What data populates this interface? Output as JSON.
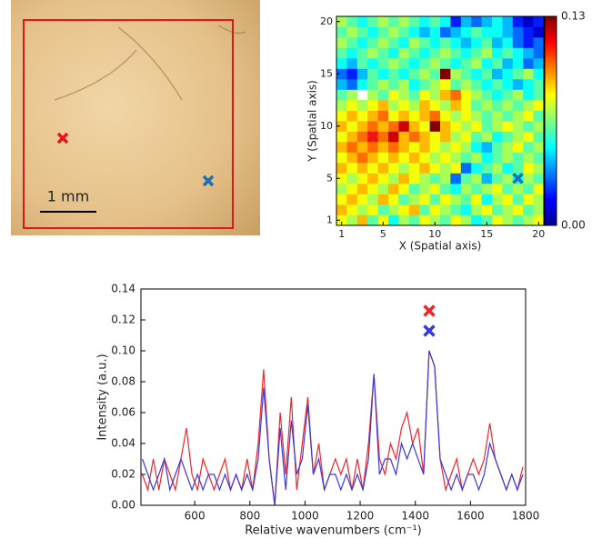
{
  "image": {
    "scale_bar": "1 mm"
  },
  "chart_data": [
    {
      "type": "heatmap",
      "xlabel": "X (Spatial axis)",
      "ylabel": "Y (Spatial axis)",
      "xlim": [
        0.5,
        20.5
      ],
      "ylim": [
        0.5,
        20.5
      ],
      "xticks": [
        1,
        5,
        10,
        15,
        20
      ],
      "yticks": [
        1,
        5,
        10,
        15,
        20
      ],
      "zlim": [
        0,
        0.13
      ],
      "zticks": [
        {
          "value": 0,
          "label": "0.00"
        },
        0.13
      ],
      "colormap": "jet",
      "markers": [
        {
          "x": 4,
          "y": 9,
          "color": "#e8141c"
        },
        {
          "x": 18,
          "y": 5,
          "color": "#1f6fb5"
        }
      ],
      "z": [
        [
          0.08,
          0.07,
          0.09,
          0.06,
          0.08,
          0.05,
          0.07,
          0.06,
          0.08,
          0.07,
          0.06,
          0.08,
          0.07,
          0.05,
          0.06,
          0.08,
          0.07,
          0.06,
          0.07,
          0.08
        ],
        [
          0.09,
          0.08,
          0.07,
          0.08,
          0.06,
          0.07,
          0.08,
          0.09,
          0.06,
          0.08,
          0.07,
          0.06,
          0.05,
          0.07,
          0.08,
          0.06,
          0.07,
          0.08,
          0.06,
          0.07
        ],
        [
          0.08,
          0.09,
          0.08,
          0.07,
          0.09,
          0.08,
          0.06,
          0.07,
          0.08,
          0.06,
          0.08,
          0.07,
          0.06,
          0.08,
          0.05,
          0.07,
          0.08,
          0.06,
          0.08,
          0.07
        ],
        [
          0.07,
          0.08,
          0.09,
          0.08,
          0.07,
          0.09,
          0.08,
          0.06,
          0.07,
          0.08,
          0.06,
          0.05,
          0.07,
          0.06,
          0.07,
          0.08,
          0.06,
          0.07,
          0.06,
          0.08
        ],
        [
          0.08,
          0.07,
          0.08,
          0.09,
          0.08,
          0.07,
          0.09,
          0.08,
          0.07,
          0.06,
          0.07,
          0.03,
          0.06,
          0.07,
          0.04,
          0.06,
          0.07,
          0.05,
          0.07,
          0.06
        ],
        [
          0.09,
          0.08,
          0.09,
          0.08,
          0.09,
          0.08,
          0.07,
          0.08,
          0.09,
          0.08,
          0.07,
          0.08,
          0.03,
          0.05,
          0.06,
          0.07,
          0.05,
          0.06,
          0.08,
          0.07
        ],
        [
          0.08,
          0.09,
          0.1,
          0.09,
          0.08,
          0.09,
          0.08,
          0.09,
          0.08,
          0.07,
          0.08,
          0.07,
          0.06,
          0.07,
          0.05,
          0.06,
          0.07,
          0.06,
          0.07,
          0.06
        ],
        [
          0.09,
          0.1,
          0.09,
          0.1,
          0.09,
          0.1,
          0.09,
          0.08,
          0.09,
          0.08,
          0.07,
          0.08,
          0.07,
          0.05,
          0.04,
          0.06,
          0.07,
          0.08,
          0.06,
          0.07
        ],
        [
          0.08,
          0.09,
          0.1,
          0.11,
          0.1,
          0.12,
          0.09,
          0.1,
          0.09,
          0.08,
          0.09,
          0.07,
          0.08,
          0.06,
          0.07,
          0.05,
          0.06,
          0.07,
          0.08,
          0.06
        ],
        [
          0.09,
          0.08,
          0.09,
          0.1,
          0.09,
          0.1,
          0.12,
          0.09,
          0.08,
          0.13,
          0.09,
          0.08,
          0.07,
          0.08,
          0.06,
          0.07,
          0.08,
          0.07,
          0.06,
          0.07
        ],
        [
          0.08,
          0.09,
          0.08,
          0.09,
          0.1,
          0.08,
          0.09,
          0.08,
          0.09,
          0.1,
          0.08,
          0.07,
          0.08,
          0.07,
          0.06,
          0.07,
          0.06,
          0.07,
          0.08,
          0.06
        ],
        [
          0.07,
          0.08,
          0.07,
          0.08,
          0.09,
          0.07,
          0.08,
          0.07,
          0.09,
          0.08,
          0.07,
          0.09,
          0.08,
          0.06,
          0.07,
          0.06,
          0.07,
          0.06,
          0.07,
          0.08
        ],
        [
          0.06,
          0.07,
          null,
          0.07,
          0.06,
          0.08,
          0.07,
          0.06,
          0.08,
          0.07,
          0.09,
          0.1,
          0.08,
          0.07,
          0.06,
          0.05,
          0.06,
          0.07,
          0.05,
          0.06
        ],
        [
          0.04,
          0.03,
          0.05,
          0.06,
          0.07,
          0.06,
          0.07,
          0.05,
          0.06,
          0.07,
          0.08,
          0.06,
          0.07,
          0.06,
          0.05,
          0.06,
          0.05,
          0.04,
          0.05,
          0.06
        ],
        [
          0.03,
          0.02,
          0.04,
          0.06,
          0.05,
          0.06,
          0.05,
          0.06,
          0.07,
          0.06,
          0.13,
          0.07,
          0.06,
          0.05,
          0.06,
          0.04,
          0.05,
          0.06,
          0.07,
          0.05
        ],
        [
          0.05,
          0.04,
          0.06,
          0.05,
          0.06,
          0.07,
          0.06,
          0.05,
          0.06,
          0.07,
          0.06,
          0.05,
          0.06,
          0.07,
          0.05,
          0.06,
          0.04,
          0.05,
          0.03,
          0.04
        ],
        [
          0.06,
          0.05,
          0.06,
          0.07,
          0.06,
          0.05,
          0.07,
          0.06,
          0.05,
          0.06,
          0.07,
          0.06,
          0.05,
          0.06,
          0.07,
          0.05,
          0.06,
          0.05,
          0.04,
          0.03
        ],
        [
          0.07,
          0.06,
          0.05,
          0.06,
          0.07,
          0.06,
          0.05,
          0.07,
          0.06,
          0.05,
          0.06,
          0.05,
          0.04,
          0.05,
          0.06,
          0.04,
          0.05,
          0.03,
          0.02,
          0.03
        ],
        [
          0.06,
          0.07,
          0.06,
          0.05,
          0.06,
          0.07,
          0.06,
          0.05,
          0.04,
          0.05,
          0.03,
          0.04,
          0.05,
          0.06,
          0.05,
          0.05,
          0.04,
          0.03,
          0.02,
          0.01
        ],
        [
          0.07,
          0.06,
          0.05,
          0.06,
          0.07,
          0.06,
          0.07,
          0.06,
          0.05,
          0.06,
          0.05,
          0.02,
          0.04,
          0.03,
          0.04,
          0.05,
          0.04,
          0.02,
          0.01,
          0.02
        ]
      ]
    },
    {
      "type": "line",
      "xlabel": "Relative wavenumbers (cm⁻¹)",
      "ylabel": "Intensity (a.u.)",
      "xlim": [
        405,
        1800
      ],
      "ylim": [
        0,
        0.14
      ],
      "xticks": [
        600,
        800,
        1000,
        1200,
        1400,
        1600,
        1800
      ],
      "yticks": [
        {
          "value": 0,
          "label": "0.00"
        },
        0.02,
        0.04,
        0.06,
        0.08,
        {
          "value": 0.1,
          "label": "0.10"
        },
        0.12,
        0.14
      ],
      "x": [
        410,
        430,
        450,
        470,
        490,
        510,
        530,
        550,
        570,
        590,
        610,
        630,
        650,
        670,
        690,
        710,
        730,
        750,
        770,
        790,
        810,
        830,
        850,
        870,
        890,
        910,
        930,
        950,
        970,
        990,
        1010,
        1030,
        1050,
        1070,
        1090,
        1110,
        1130,
        1150,
        1170,
        1190,
        1210,
        1230,
        1250,
        1270,
        1290,
        1310,
        1330,
        1350,
        1370,
        1390,
        1410,
        1430,
        1450,
        1470,
        1490,
        1510,
        1530,
        1550,
        1570,
        1590,
        1610,
        1630,
        1650,
        1670,
        1690,
        1710,
        1730,
        1750,
        1770,
        1790
      ],
      "series": [
        {
          "color": "#f0262a",
          "values": [
            0.02,
            0.01,
            0.03,
            0.01,
            0.03,
            0.02,
            0.01,
            0.03,
            0.05,
            0.02,
            0.01,
            0.03,
            0.02,
            0.01,
            0.02,
            0.03,
            0.01,
            0.02,
            0.01,
            0.03,
            0.01,
            0.04,
            0.088,
            0.03,
            0,
            0.06,
            0.02,
            0.07,
            0.01,
            0.04,
            0.07,
            0.02,
            0.04,
            0.01,
            0.02,
            0.03,
            0.02,
            0.03,
            0.01,
            0.03,
            0.01,
            0.04,
            0.085,
            0.03,
            0.02,
            0.04,
            0.03,
            0.05,
            0.06,
            0.04,
            0.05,
            0.02,
            0.1,
            0.09,
            0.03,
            0.01,
            0.02,
            0.03,
            0.01,
            0.02,
            0.03,
            0.02,
            0.03,
            0.053,
            0.03,
            0.02,
            0.01,
            0.02,
            0.01,
            0.025
          ]
        },
        {
          "color": "#3a3adf",
          "values": [
            0.03,
            0.02,
            0.01,
            0.02,
            0.03,
            0.01,
            0.02,
            0.03,
            0.02,
            0.01,
            0.02,
            0.01,
            0.02,
            0.02,
            0.01,
            0.02,
            0.01,
            0.02,
            0.01,
            0.02,
            0.01,
            0.03,
            0.076,
            0.03,
            0,
            0.05,
            0.01,
            0.055,
            0.02,
            0.03,
            0.065,
            0.02,
            0.03,
            0.01,
            0.02,
            0.02,
            0.01,
            0.02,
            0.01,
            0.02,
            0.01,
            0.03,
            0.085,
            0.02,
            0.03,
            0.03,
            0.02,
            0.04,
            0.03,
            0.04,
            0.03,
            0.02,
            0.1,
            0.09,
            0.03,
            0.02,
            0.01,
            0.02,
            0.01,
            0.02,
            0.02,
            0.01,
            0.02,
            0.04,
            0.03,
            0.02,
            0.01,
            0.02,
            0.01,
            0.02
          ]
        }
      ]
    }
  ]
}
